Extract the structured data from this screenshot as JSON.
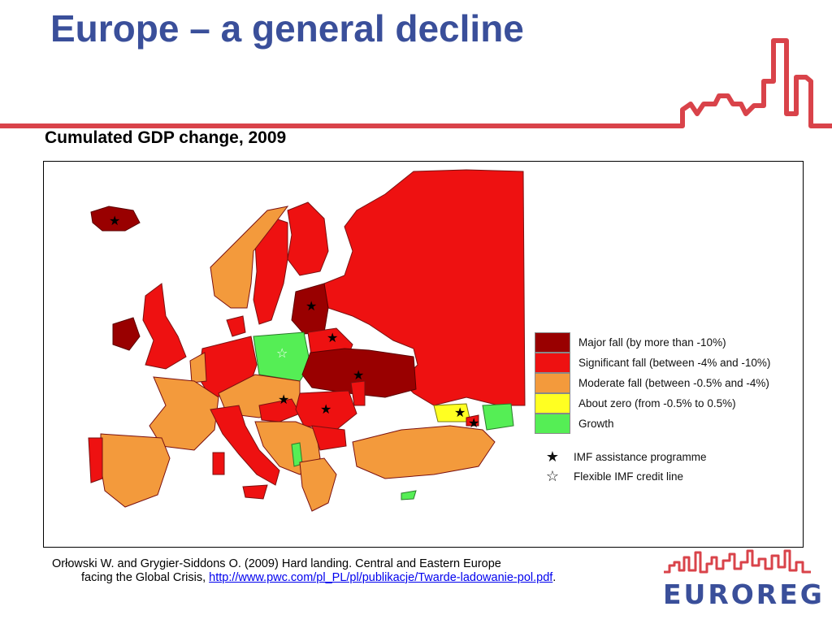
{
  "slide": {
    "title": "Europe – a general decline",
    "subtitle": "Cumulated GDP change, 2009"
  },
  "colors": {
    "title": "#3a4f9a",
    "skyline": "#d9434a",
    "major_fall": "#990000",
    "significant_fall": "#ee1111",
    "moderate_fall": "#f39a3c",
    "about_zero": "#ffff22",
    "growth": "#55ee55"
  },
  "legend": {
    "categories": [
      {
        "label": "Major fall (by more than -10%)",
        "color": "#990000"
      },
      {
        "label": "Significant fall (between -4% and -10%)",
        "color": "#ee1111"
      },
      {
        "label": "Moderate fall (between -0.5% and -4%)",
        "color": "#f39a3c"
      },
      {
        "label": "About zero (from -0.5% to 0.5%)",
        "color": "#ffff22"
      },
      {
        "label": "Growth",
        "color": "#55ee55"
      }
    ],
    "markers": [
      {
        "icon": "filled-star-icon",
        "glyph": "★",
        "label": "IMF assistance programme"
      },
      {
        "icon": "outline-star-icon",
        "glyph": "☆",
        "label": "Flexible IMF credit line"
      }
    ]
  },
  "citation": {
    "text_main": "Orłowski W. and Grygier-Siddons O. (2009) Hard landing. Central and Eastern Europe",
    "text_cont": "facing the Global Crisis,",
    "link": "http://www.pwc.com/pl_PL/pl/publikacje/Twarde-ladowanie-pol.pdf",
    "end": "."
  },
  "logo": {
    "text": "EUROREG"
  }
}
